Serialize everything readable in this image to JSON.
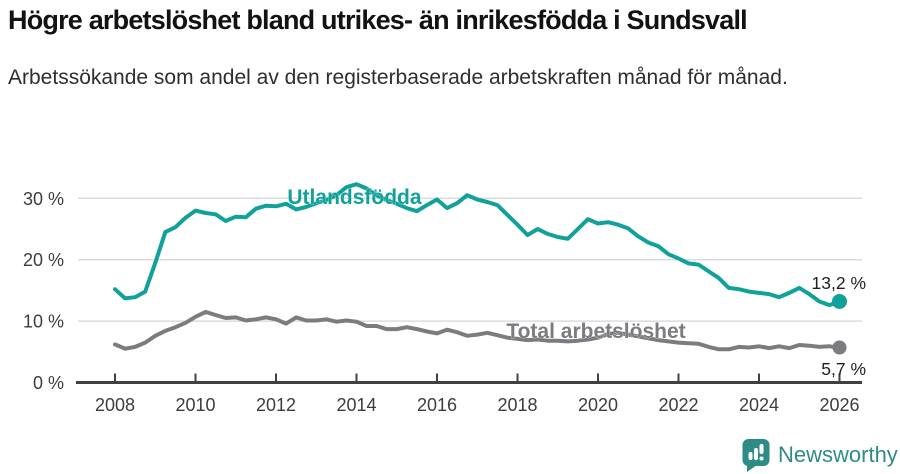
{
  "header": {
    "title": "Högre arbetslöshet bland utrikes- än inrikesfödda i Sundsvall",
    "subtitle": "Arbetssökande som andel av den registerbaserade arbetskraften månad för månad."
  },
  "footer": {
    "brand": "Newsworthy",
    "brand_color": "#2e8b85",
    "logo_icon": "speech-bubble-bar-chart-icon"
  },
  "chart_data": {
    "type": "line",
    "grid": "horizontal",
    "legend_position": "inline-labels",
    "colors": {
      "utlandsfodda": "#10a29a",
      "total": "#7c7c80",
      "axis": "#3f4040",
      "gridline": "#dcdcdc",
      "tick_text": "#3d3d3d",
      "value_text": "#1f1f1f"
    },
    "xlim": [
      2007.05,
      2026.55
    ],
    "ylim": [
      0,
      33
    ],
    "y_ticks": [
      {
        "value": 30,
        "label": "30 %"
      },
      {
        "value": 20,
        "label": "20 %"
      },
      {
        "value": 10,
        "label": "10 %"
      },
      {
        "value": 0,
        "label": "0 %"
      }
    ],
    "x_ticks": [
      {
        "value": 2008,
        "label": "2008"
      },
      {
        "value": 2010,
        "label": "2010"
      },
      {
        "value": 2012,
        "label": "2012"
      },
      {
        "value": 2014,
        "label": "2014"
      },
      {
        "value": 2016,
        "label": "2016"
      },
      {
        "value": 2018,
        "label": "2018"
      },
      {
        "value": 2020,
        "label": "2020"
      },
      {
        "value": 2022,
        "label": "2022"
      },
      {
        "value": 2024,
        "label": "2024"
      },
      {
        "value": 2026,
        "label": "2026"
      }
    ],
    "x_start": 2008.0,
    "x_step": 0.25,
    "series": [
      {
        "name": "Utlandsfödda",
        "color": "#10a29a",
        "end_label": "13,2 %",
        "last_value": 13.2,
        "values": [
          15.2,
          13.7,
          13.9,
          14.8,
          19.5,
          24.5,
          25.3,
          26.8,
          28.0,
          27.6,
          27.4,
          26.3,
          27.0,
          26.9,
          28.3,
          28.8,
          28.7,
          29.1,
          28.2,
          28.6,
          29.2,
          29.7,
          30.5,
          31.8,
          32.3,
          31.6,
          30.5,
          29.7,
          29.1,
          28.4,
          27.9,
          28.9,
          29.8,
          28.4,
          29.2,
          30.5,
          29.8,
          29.4,
          28.9,
          27.3,
          25.7,
          24.0,
          25.0,
          24.2,
          23.7,
          23.4,
          25.0,
          26.6,
          25.9,
          26.1,
          25.7,
          25.1,
          23.8,
          22.8,
          22.2,
          20.9,
          20.2,
          19.4,
          19.2,
          18.1,
          17.0,
          15.4,
          15.2,
          14.8,
          14.6,
          14.4,
          13.9,
          14.6,
          15.4,
          14.4,
          13.2,
          12.6,
          13.2
        ]
      },
      {
        "name": "Total arbetslöshet",
        "color": "#7c7c80",
        "end_label": "5,7 %",
        "last_value": 5.7,
        "values": [
          6.2,
          5.5,
          5.8,
          6.5,
          7.6,
          8.4,
          9.0,
          9.7,
          10.7,
          11.5,
          11.0,
          10.5,
          10.6,
          10.1,
          10.3,
          10.6,
          10.3,
          9.6,
          10.6,
          10.1,
          10.1,
          10.3,
          9.9,
          10.1,
          9.9,
          9.2,
          9.2,
          8.7,
          8.7,
          9.0,
          8.7,
          8.3,
          8.0,
          8.6,
          8.2,
          7.6,
          7.8,
          8.1,
          7.7,
          7.3,
          7.1,
          6.9,
          7.0,
          6.8,
          6.8,
          6.7,
          6.8,
          7.0,
          7.3,
          7.9,
          8.1,
          7.8,
          7.5,
          7.2,
          6.9,
          6.7,
          6.5,
          6.4,
          6.3,
          5.8,
          5.4,
          5.4,
          5.8,
          5.7,
          5.9,
          5.6,
          5.9,
          5.6,
          6.1,
          6.0,
          5.8,
          5.9,
          5.7
        ]
      }
    ]
  }
}
